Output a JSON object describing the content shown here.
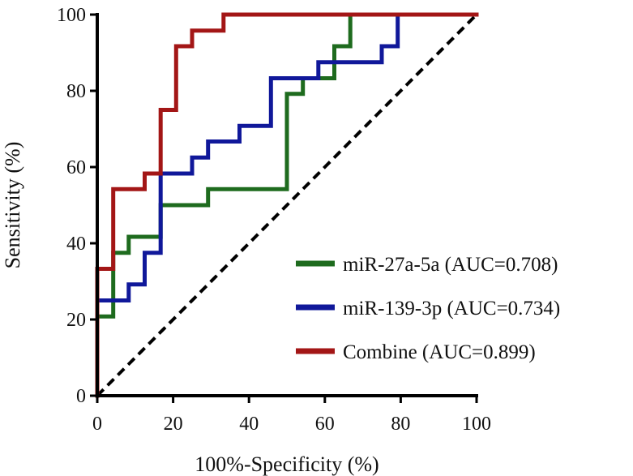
{
  "chart_data": {
    "type": "line",
    "title": "",
    "xlabel": "100%-Specificity (%)",
    "ylabel": "Sensitivity (%)",
    "xlim": [
      0,
      100
    ],
    "ylim": [
      0,
      100
    ],
    "xticks": [
      "0",
      "20",
      "40",
      "60",
      "80",
      "100"
    ],
    "yticks": [
      "0",
      "20",
      "40",
      "60",
      "80",
      "100"
    ],
    "grid": false,
    "legend_position": "bottom-right",
    "reference_line": {
      "style": "dashed",
      "from": [
        0,
        0
      ],
      "to": [
        100,
        100
      ],
      "color": "#000000"
    },
    "series": [
      {
        "name": "miR-27a-5a (AUC=0.708)",
        "color": "#1e6b1e",
        "points": [
          [
            0,
            0
          ],
          [
            0,
            20.8
          ],
          [
            4.2,
            20.8
          ],
          [
            4.2,
            37.5
          ],
          [
            8.3,
            37.5
          ],
          [
            8.3,
            41.7
          ],
          [
            16.7,
            41.7
          ],
          [
            16.7,
            50
          ],
          [
            29.2,
            50
          ],
          [
            29.2,
            54.2
          ],
          [
            50,
            54.2
          ],
          [
            50,
            79.2
          ],
          [
            54.2,
            79.2
          ],
          [
            54.2,
            83.3
          ],
          [
            62.5,
            83.3
          ],
          [
            62.5,
            91.7
          ],
          [
            66.7,
            91.7
          ],
          [
            66.7,
            100
          ],
          [
            100,
            100
          ]
        ]
      },
      {
        "name": "miR-139-3p (AUC=0.734)",
        "color": "#10189a",
        "points": [
          [
            0,
            0
          ],
          [
            0,
            25
          ],
          [
            8.3,
            25
          ],
          [
            8.3,
            29.2
          ],
          [
            12.5,
            29.2
          ],
          [
            12.5,
            37.5
          ],
          [
            16.7,
            37.5
          ],
          [
            16.7,
            58.3
          ],
          [
            25,
            58.3
          ],
          [
            25,
            62.5
          ],
          [
            29.2,
            62.5
          ],
          [
            29.2,
            66.7
          ],
          [
            37.5,
            66.7
          ],
          [
            37.5,
            70.8
          ],
          [
            45.8,
            70.8
          ],
          [
            45.8,
            83.3
          ],
          [
            58.3,
            83.3
          ],
          [
            58.3,
            87.5
          ],
          [
            75,
            87.5
          ],
          [
            75,
            91.7
          ],
          [
            79.2,
            91.7
          ],
          [
            79.2,
            100
          ],
          [
            100,
            100
          ]
        ]
      },
      {
        "name": "Combine (AUC=0.899)",
        "color": "#a31616",
        "points": [
          [
            0,
            0
          ],
          [
            0,
            33.3
          ],
          [
            4.2,
            33.3
          ],
          [
            4.2,
            54.2
          ],
          [
            12.5,
            54.2
          ],
          [
            12.5,
            58.3
          ],
          [
            16.7,
            58.3
          ],
          [
            16.7,
            75
          ],
          [
            20.8,
            75
          ],
          [
            20.8,
            91.7
          ],
          [
            25,
            91.7
          ],
          [
            25,
            95.8
          ],
          [
            33.3,
            95.8
          ],
          [
            33.3,
            100
          ],
          [
            100,
            100
          ]
        ]
      }
    ]
  }
}
